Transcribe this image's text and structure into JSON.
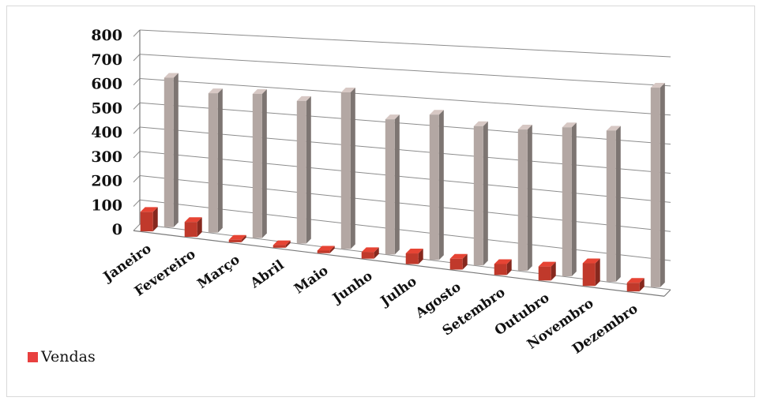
{
  "chart_data": {
    "type": "bar",
    "style": "3d-clustered-column",
    "categories": [
      "Janeiro",
      "Fevereiro",
      "Março",
      "Abril",
      "Maio",
      "Junho",
      "Julho",
      "Agosto",
      "Setembro",
      "Outubro",
      "Novembro",
      "Dezembro"
    ],
    "series": [
      {
        "name": "Vendas",
        "values": [
          80,
          60,
          10,
          10,
          10,
          25,
          40,
          40,
          40,
          50,
          80,
          30
        ],
        "color": "#c0392b"
      },
      {
        "name": "",
        "values": [
          610,
          560,
          570,
          555,
          600,
          510,
          540,
          510,
          510,
          530,
          530,
          690
        ],
        "color": "#b3a7a3"
      }
    ],
    "yticks": [
      "800",
      "700",
      "600",
      "500",
      "400",
      "300",
      "200",
      "100",
      "0"
    ],
    "ylim": [
      0,
      800
    ],
    "grid": true,
    "legend_position": "bottom-left",
    "title": "",
    "xlabel": "",
    "ylabel": ""
  },
  "legend": {
    "label": "Vendas",
    "color": "#e8403f"
  }
}
